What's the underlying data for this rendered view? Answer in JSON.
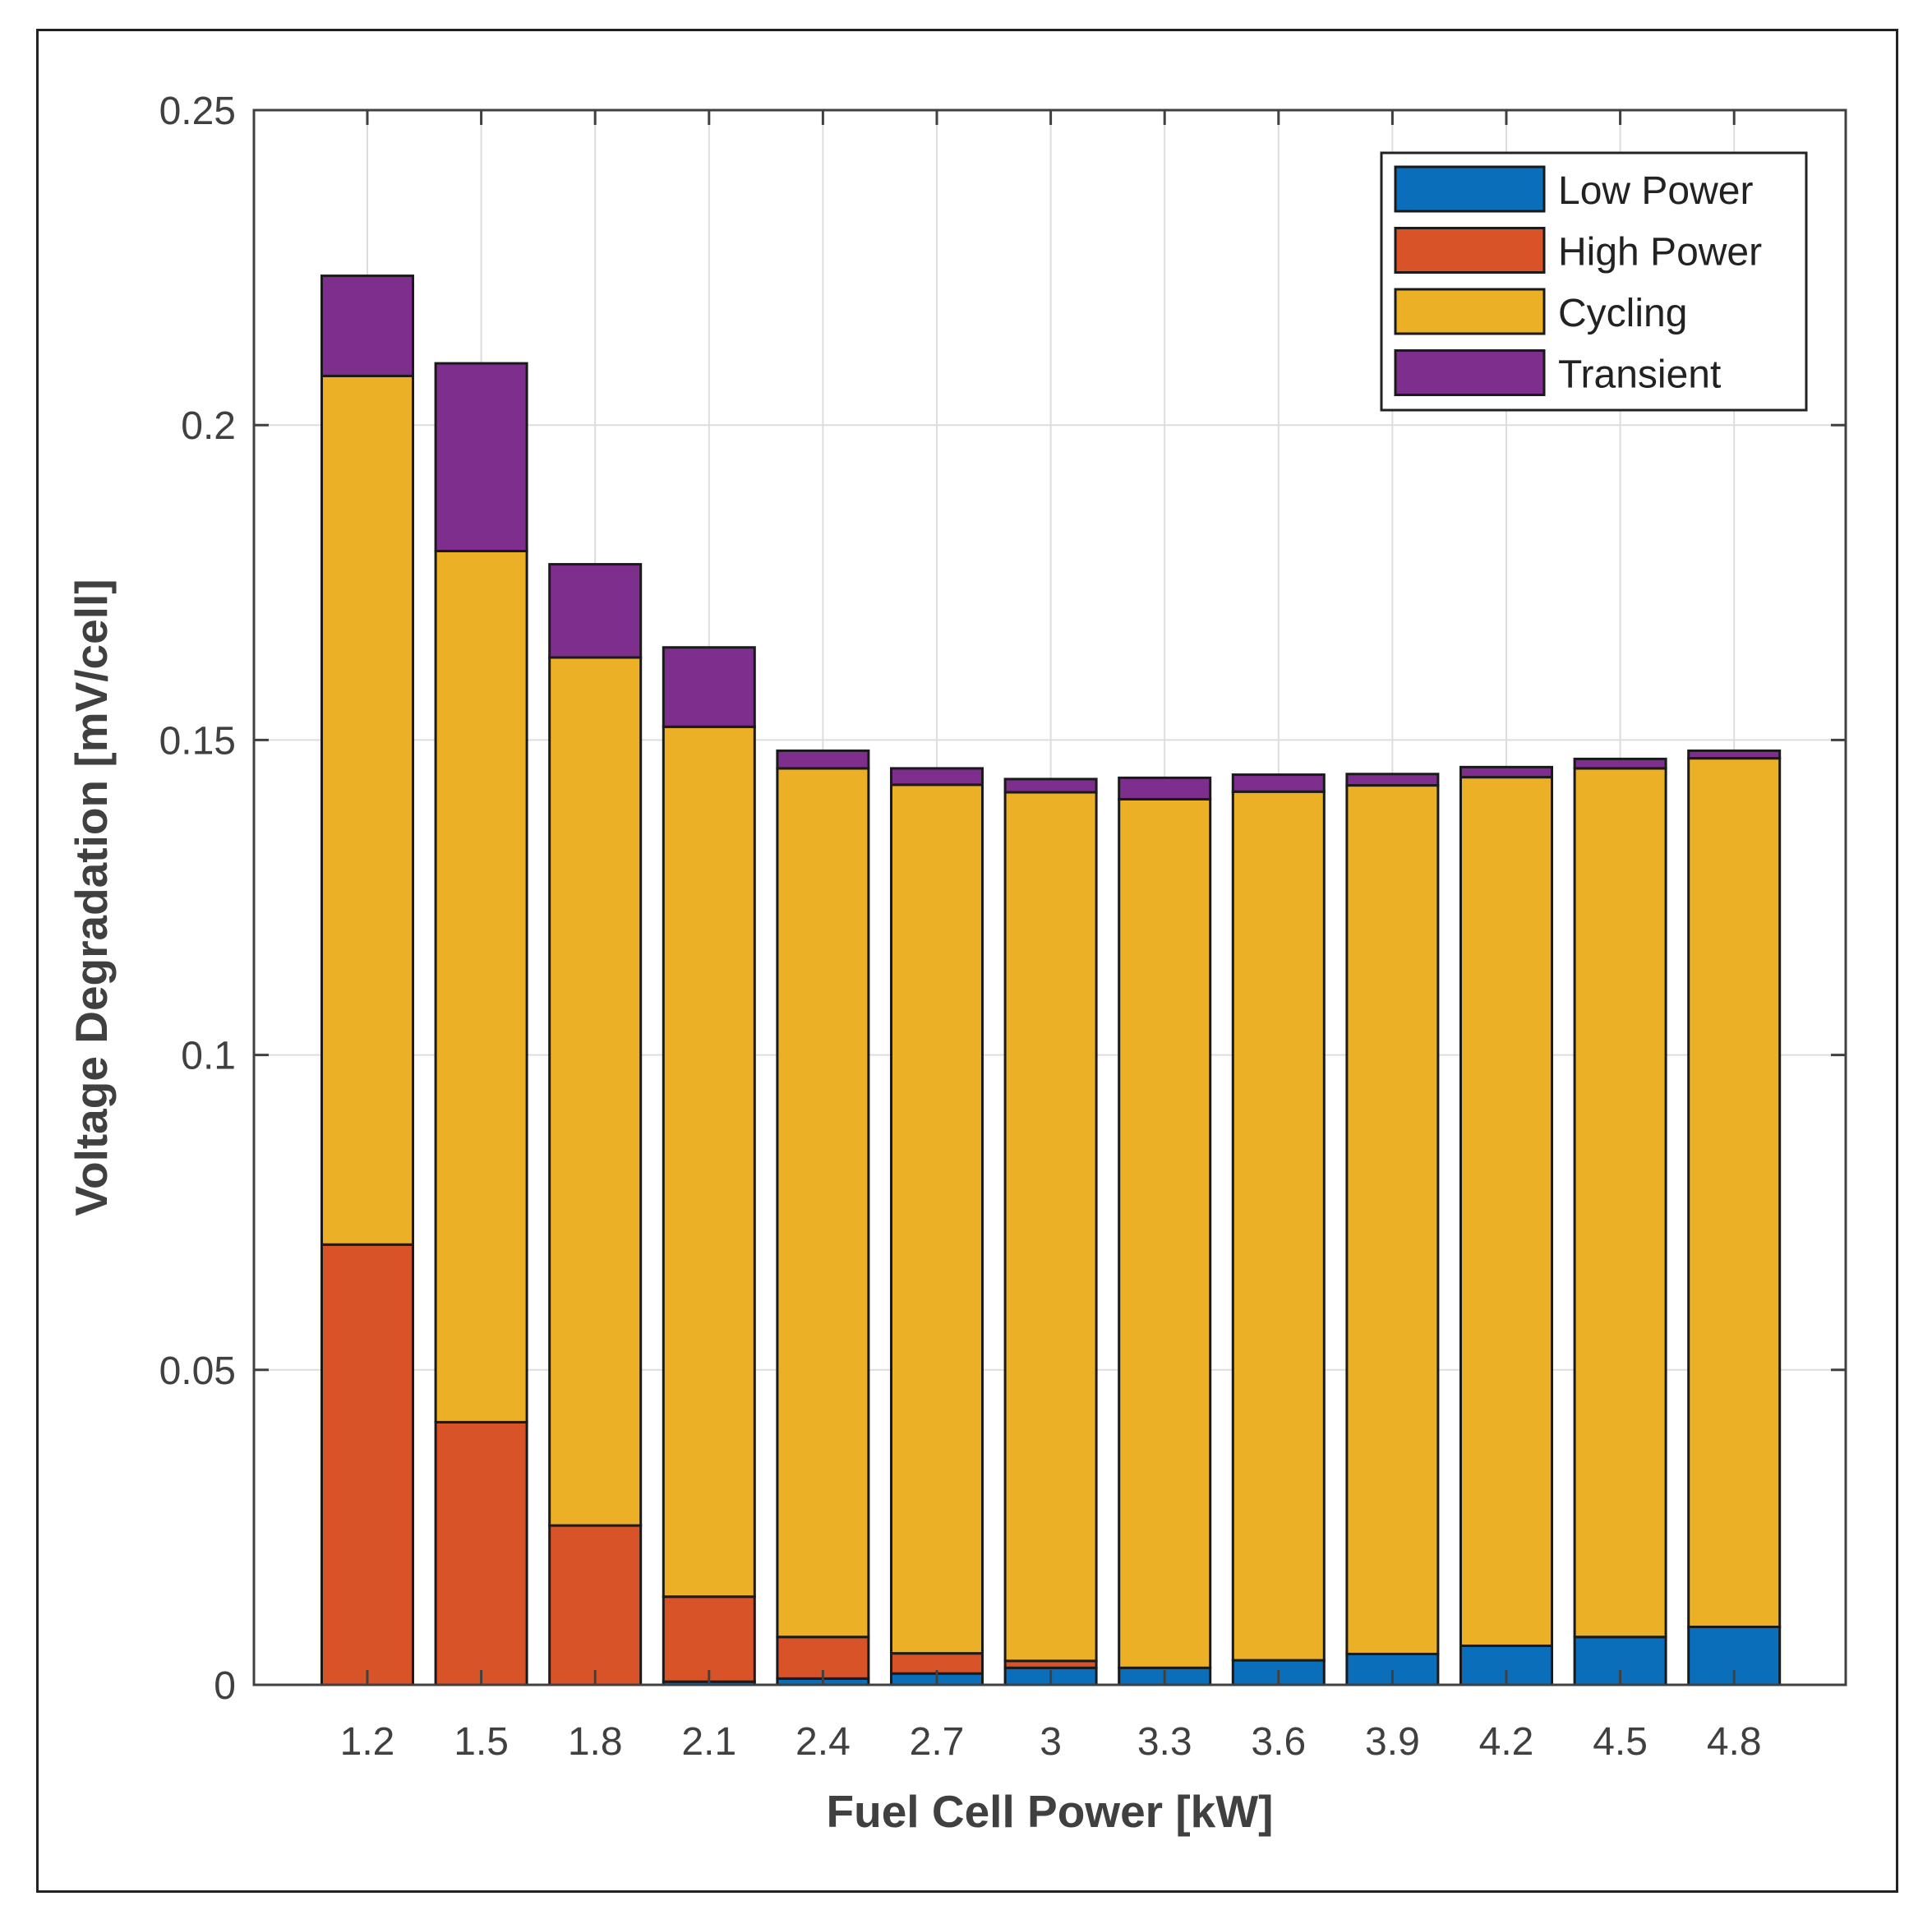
{
  "chart_data": {
    "type": "bar",
    "stacked": true,
    "title": "",
    "xlabel": "Fuel Cell Power [kW]",
    "ylabel": "Voltage Degradation [mV/cell]",
    "ylim": [
      0,
      0.25
    ],
    "yticks": [
      "0",
      "0.05",
      "0.1",
      "0.15",
      "0.2",
      "0.25"
    ],
    "ytick_values": [
      0,
      0.05,
      0.1,
      0.15,
      0.2,
      0.25
    ],
    "grid": true,
    "legend_position": "top-right",
    "categories": [
      "1.2",
      "1.5",
      "1.8",
      "2.1",
      "2.4",
      "2.7",
      "3",
      "3.3",
      "3.6",
      "3.9",
      "4.2",
      "4.5",
      "4.8"
    ],
    "series": [
      {
        "name": "Low Power",
        "color": "#0a6eba",
        "values": [
          0,
          0,
          0,
          0.0005,
          0.001,
          0.0018,
          0.0027,
          0.0027,
          0.0039,
          0.0049,
          0.0062,
          0.0076,
          0.0092
        ]
      },
      {
        "name": "High Power",
        "color": "#d95328",
        "values": [
          0.0699,
          0.0417,
          0.0253,
          0.0135,
          0.0066,
          0.0032,
          0.0011,
          0,
          0,
          0,
          0,
          0,
          0
        ]
      },
      {
        "name": "Cycling",
        "color": "#ebb025",
        "values": [
          0.1379,
          0.1383,
          0.1378,
          0.1381,
          0.1379,
          0.1379,
          0.1379,
          0.1379,
          0.1379,
          0.1379,
          0.1379,
          0.1379,
          0.1379
        ]
      },
      {
        "name": "Transient",
        "color": "#7e2f8e",
        "values": [
          0.0159,
          0.0298,
          0.0148,
          0.0126,
          0.0028,
          0.0026,
          0.0021,
          0.0034,
          0.0027,
          0.0018,
          0.0016,
          0.0015,
          0.0012
        ]
      }
    ]
  }
}
